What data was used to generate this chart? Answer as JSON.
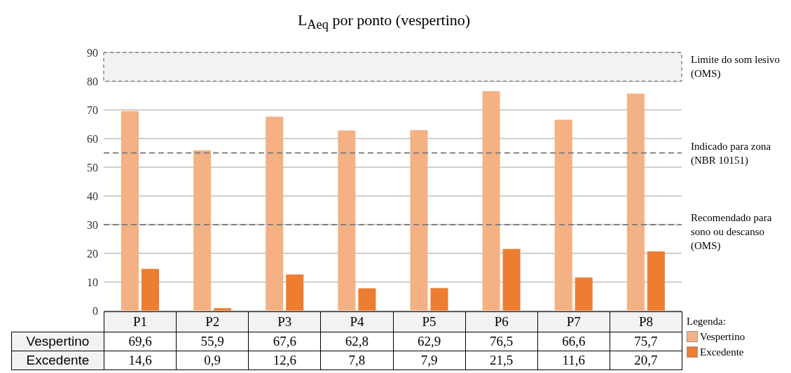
{
  "chart_data": {
    "type": "bar",
    "title": "L$_{Aeq}$ por ponto (vespertino)",
    "categories": [
      "P1",
      "P2",
      "P3",
      "P4",
      "P5",
      "P6",
      "P7",
      "P8"
    ],
    "series": [
      {
        "name": "Vespertino",
        "color": "#f4b183",
        "values": [
          69.6,
          55.9,
          67.6,
          62.8,
          62.9,
          76.5,
          66.6,
          75.7
        ],
        "value_labels": [
          "69,6",
          "55,9",
          "67,6",
          "62,8",
          "62,9",
          "76,5",
          "66,6",
          "75,7"
        ]
      },
      {
        "name": "Excedente",
        "color": "#ed7d31",
        "values": [
          14.6,
          0.9,
          12.6,
          7.8,
          7.9,
          21.5,
          11.6,
          20.7
        ],
        "value_labels": [
          "14,6",
          "0,9",
          "12,6",
          "7,8",
          "7,9",
          "21,5",
          "11,6",
          "20,7"
        ]
      }
    ],
    "ylim": [
      0,
      90
    ],
    "yticks": [
      0,
      10,
      20,
      30,
      40,
      50,
      60,
      70,
      80,
      90
    ],
    "grid": "y",
    "legend": "bottom right",
    "legend_title": "Legenda:",
    "ref_lines": [
      {
        "axis": "y",
        "value": 55,
        "label": "Indicado para zona (NBR 10151)",
        "line_style": "dashed",
        "color": "#808080"
      },
      {
        "axis": "y",
        "value": 30,
        "label": "Recomendado para sono ou descanso (OMS)",
        "line_style": "dashed",
        "color": "#808080"
      }
    ],
    "bands": [
      {
        "axis": "y",
        "from": 80,
        "to": 90,
        "label": "Limite do som lesivo (OMS)",
        "color": "#f2f2f2"
      }
    ]
  }
}
